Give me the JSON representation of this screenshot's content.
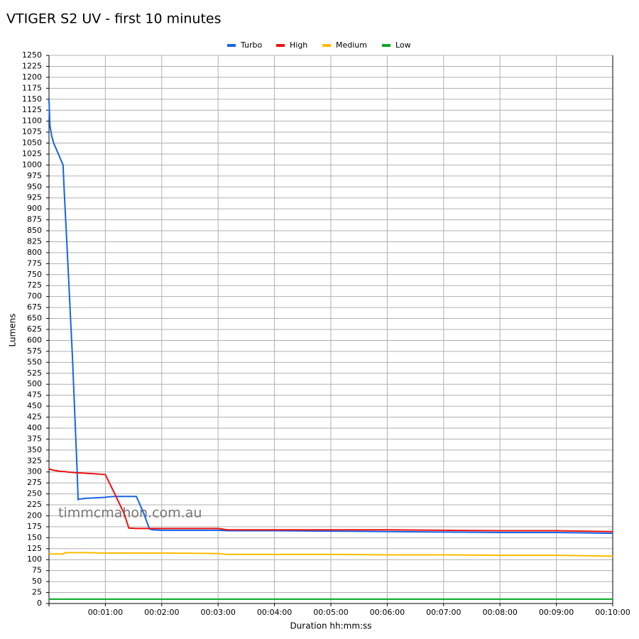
{
  "chart_data": {
    "type": "line",
    "title": "VTIGER S2 UV - first 10 minutes",
    "x_label": "Duration hh:mm:ss",
    "y_label": "Lumens",
    "annotation": "timmcmahon.com.au",
    "x": [
      0,
      1,
      3,
      5,
      10,
      15,
      16,
      20,
      25,
      30,
      31,
      32,
      40,
      60,
      62,
      70,
      80,
      85,
      93,
      100,
      107,
      110,
      120,
      180,
      190,
      240,
      300,
      360,
      420,
      480,
      540,
      600
    ],
    "series": [
      {
        "name": "Turbo",
        "color": "#1565e6",
        "values": [
          1150,
          1090,
          1065,
          1050,
          1025,
          1000,
          950,
          780,
          560,
          300,
          237,
          238,
          240,
          242,
          243,
          244,
          244,
          244,
          244,
          210,
          170,
          168,
          167,
          167,
          166,
          166,
          165,
          164,
          163,
          162,
          162,
          160
        ]
      },
      {
        "name": "High",
        "color": "#ee1111",
        "values": [
          308,
          306,
          305,
          304,
          302,
          301,
          301,
          300,
          299,
          298,
          298,
          298,
          297,
          294,
          285,
          250,
          205,
          172,
          171,
          171,
          171,
          171,
          171,
          171,
          168,
          168,
          168,
          168,
          167,
          166,
          166,
          164
        ]
      },
      {
        "name": "Medium",
        "color": "#ffbb00",
        "values": [
          115,
          114,
          113,
          113,
          113,
          113,
          115,
          116,
          116,
          116,
          116,
          116,
          116,
          115,
          115,
          115,
          115,
          115,
          115,
          115,
          115,
          115,
          115,
          114,
          112,
          112,
          112,
          111,
          111,
          110,
          110,
          108
        ]
      },
      {
        "name": "Low",
        "color": "#00aa22",
        "values": [
          10,
          10,
          10,
          10,
          10,
          10,
          10,
          10,
          10,
          10,
          10,
          10,
          10,
          10,
          10,
          10,
          10,
          10,
          10,
          10,
          10,
          10,
          10,
          10,
          10,
          10,
          10,
          10,
          10,
          10,
          10,
          10
        ]
      }
    ],
    "xlim": [
      0,
      600
    ],
    "xticks": [
      {
        "value": 60,
        "label": "00:01:00"
      },
      {
        "value": 120,
        "label": "00:02:00"
      },
      {
        "value": 180,
        "label": "00:03:00"
      },
      {
        "value": 240,
        "label": "00:04:00"
      },
      {
        "value": 300,
        "label": "00:05:00"
      },
      {
        "value": 360,
        "label": "00:06:00"
      },
      {
        "value": 420,
        "label": "00:07:00"
      },
      {
        "value": 480,
        "label": "00:08:00"
      },
      {
        "value": 540,
        "label": "00:09:00"
      },
      {
        "value": 600,
        "label": "00:10:00"
      }
    ],
    "ylim": [
      0,
      1250
    ],
    "yticks": [
      0,
      25,
      50,
      75,
      100,
      125,
      150,
      175,
      200,
      225,
      250,
      275,
      300,
      325,
      350,
      375,
      400,
      425,
      450,
      475,
      500,
      525,
      550,
      575,
      600,
      625,
      650,
      675,
      700,
      725,
      750,
      775,
      800,
      825,
      850,
      875,
      900,
      925,
      950,
      975,
      1000,
      1025,
      1050,
      1075,
      1100,
      1125,
      1150,
      1175,
      1200,
      1225,
      1250
    ],
    "grid": true,
    "legend": "top"
  }
}
